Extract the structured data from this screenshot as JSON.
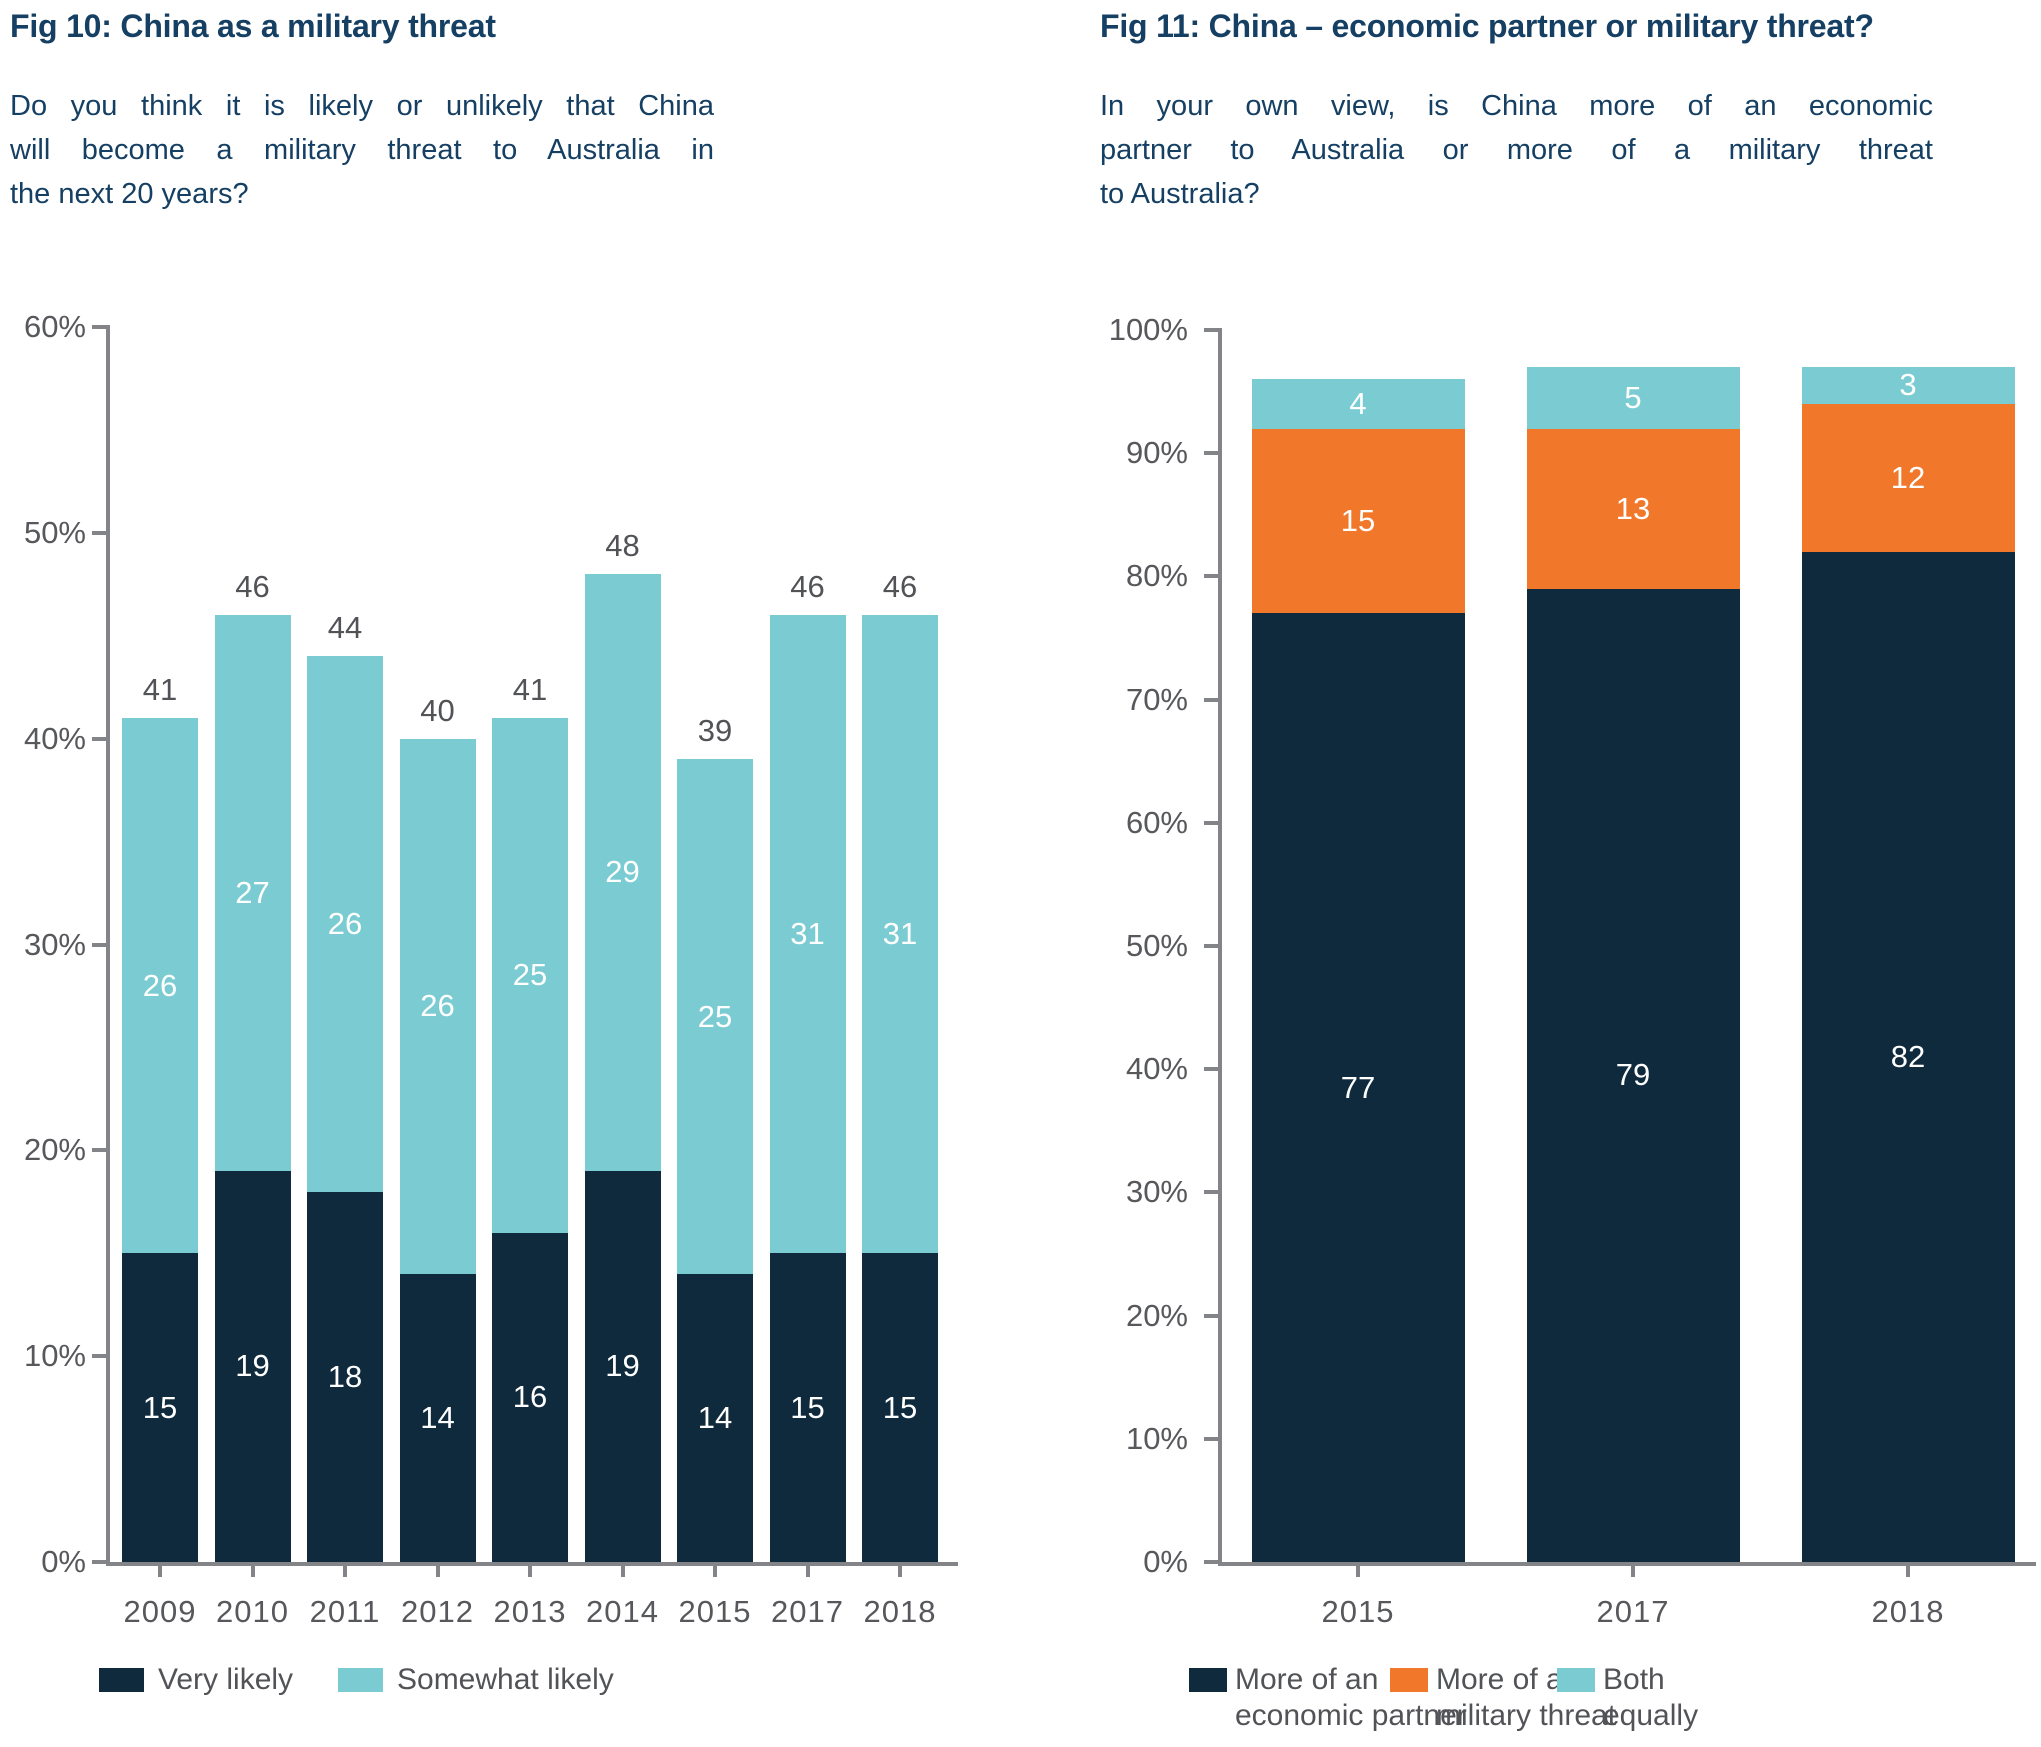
{
  "fig10": {
    "title": "Fig 10: China as a military threat",
    "subtitle": "Do you think it is likely or unlikely that China will become a military threat to Australia in the next 20 years?",
    "subtitle_lines": [
      "Do you think it is likely or unlikely that China",
      "will become a military threat to Australia in",
      "the next 20 years?"
    ],
    "legend": [
      {
        "label": "Very likely",
        "color": "#0f2a3d"
      },
      {
        "label": "Somewhat likely",
        "color": "#7bccd2"
      }
    ]
  },
  "fig11": {
    "title": "Fig 11: China – economic partner or military threat?",
    "subtitle": "In your own view, is China more of an economic partner to Australia or more of a military threat to Australia?",
    "subtitle_lines": [
      "In your own view, is China more of an economic",
      "partner to Australia or more of a military threat",
      "to Australia?"
    ],
    "legend": [
      {
        "label": "More of an\neconomic partner",
        "color": "#0f2a3d"
      },
      {
        "label": "More of a\nmilitary threat",
        "color": "#f1772b"
      },
      {
        "label": "Both\nequally",
        "color": "#7bccd2"
      }
    ]
  },
  "colors": {
    "navy": "#0f2a3d",
    "teal": "#7bccd2",
    "orange": "#f1772b",
    "title_blue": "#153f63",
    "axis_gray": "#828487",
    "text_gray": "#57585c"
  },
  "chart_data": [
    {
      "type": "bar",
      "stacked": true,
      "title": "Fig 10: China as a military threat",
      "categories": [
        "2009",
        "2010",
        "2011",
        "2012",
        "2013",
        "2014",
        "2015",
        "2017",
        "2018"
      ],
      "series": [
        {
          "name": "Very likely",
          "color": "#0f2a3d",
          "values": [
            15,
            19,
            18,
            14,
            16,
            19,
            14,
            15,
            15
          ]
        },
        {
          "name": "Somewhat likely",
          "color": "#7bccd2",
          "values": [
            26,
            27,
            26,
            26,
            25,
            29,
            25,
            31,
            31
          ]
        }
      ],
      "totals": [
        41,
        46,
        44,
        40,
        41,
        48,
        39,
        46,
        46
      ],
      "xlabel": "",
      "ylabel": "",
      "ylim": [
        0,
        60
      ],
      "y_ticks": [
        {
          "label": "0%",
          "value": 0
        },
        {
          "label": "10%",
          "value": 10
        },
        {
          "label": "20%",
          "value": 20
        },
        {
          "label": "30%",
          "value": 30
        },
        {
          "label": "40%",
          "value": 40
        },
        {
          "label": "50%",
          "value": 50
        },
        {
          "label": "60%",
          "value": 60
        }
      ],
      "grid": false,
      "legend_position": "bottom"
    },
    {
      "type": "bar",
      "stacked": true,
      "title": "Fig 11: China – economic partner or military threat?",
      "categories": [
        "2015",
        "2017",
        "2018"
      ],
      "series": [
        {
          "name": "More of an economic partner",
          "color": "#0f2a3d",
          "values": [
            77,
            79,
            82
          ]
        },
        {
          "name": "More of a military threat",
          "color": "#f1772b",
          "values": [
            15,
            13,
            12
          ]
        },
        {
          "name": "Both equally",
          "color": "#7bccd2",
          "values": [
            4,
            5,
            3
          ]
        }
      ],
      "xlabel": "",
      "ylabel": "",
      "ylim": [
        0,
        100
      ],
      "y_ticks": [
        {
          "label": "0%",
          "value": 0
        },
        {
          "label": "10%",
          "value": 10
        },
        {
          "label": "20%",
          "value": 20
        },
        {
          "label": "30%",
          "value": 30
        },
        {
          "label": "40%",
          "value": 40
        },
        {
          "label": "50%",
          "value": 50
        },
        {
          "label": "60%",
          "value": 60
        },
        {
          "label": "70%",
          "value": 70
        },
        {
          "label": "80%",
          "value": 80
        },
        {
          "label": "90%",
          "value": 90
        },
        {
          "label": "100%",
          "value": 100
        }
      ],
      "grid": false,
      "legend_position": "bottom"
    }
  ]
}
